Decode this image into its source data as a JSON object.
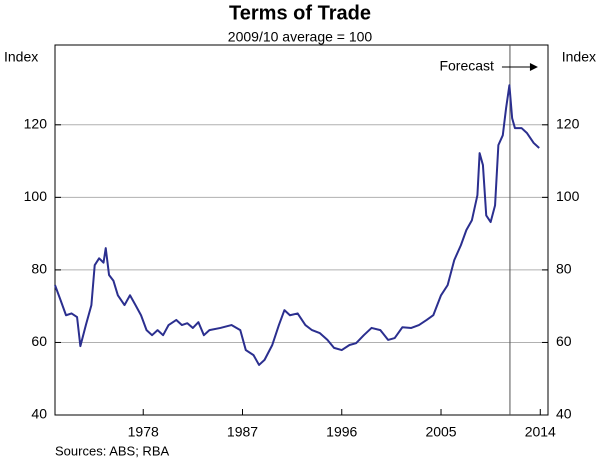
{
  "chart_data": {
    "type": "line",
    "title": "Terms of Trade",
    "subtitle": "2009/10 average = 100",
    "y_label": "Index",
    "y2_label": "Index",
    "source": "Sources: ABS; RBA",
    "annotations": [
      {
        "text": "Forecast",
        "x": 2011.25
      }
    ],
    "xlim": [
      1970,
      2014.7
    ],
    "xticks": [
      1978,
      1987,
      1996,
      2005,
      2014
    ],
    "ylim": [
      40,
      142
    ],
    "yticks": [
      40,
      60,
      80,
      100,
      120
    ],
    "y2lim": [
      40,
      142
    ],
    "y2ticks": [
      40,
      60,
      80,
      100,
      120
    ],
    "grid": true,
    "series": [
      {
        "name": "Terms of Trade",
        "color": "#2b2f8f",
        "x": [
          1970.0,
          1970.5,
          1971,
          1971.5,
          1972,
          1972.3,
          1972.8,
          1973.3,
          1973.6,
          1974,
          1974.4,
          1974.6,
          1974.9,
          1975.3,
          1975.7,
          1976.3,
          1976.8,
          1977.3,
          1977.8,
          1978.3,
          1978.8,
          1979.3,
          1979.8,
          1980.3,
          1981,
          1981.5,
          1982,
          1982.5,
          1983,
          1983.5,
          1984,
          1985,
          1986,
          1986.8,
          1987.3,
          1988,
          1988.5,
          1989,
          1989.7,
          1990.3,
          1990.8,
          1991.3,
          1992,
          1992.7,
          1993.3,
          1994,
          1994.7,
          1995.3,
          1996,
          1996.7,
          1997.3,
          1998,
          1998.7,
          1999.5,
          2000.2,
          2000.8,
          2001.5,
          2002.3,
          2003,
          2003.7,
          2004.3,
          2005,
          2005.6,
          2006.2,
          2006.8,
          2007.3,
          2007.8,
          2008.3,
          2008.5,
          2008.8,
          2009.1,
          2009.5,
          2009.9,
          2010.2,
          2010.6,
          2010.9,
          2011.2,
          2011.45,
          2011.7,
          2012.3,
          2012.8,
          2013.4,
          2013.9
        ],
        "values": [
          75.8,
          71.7,
          67.5,
          68,
          67,
          59,
          64.8,
          70.3,
          81.3,
          83.2,
          82,
          86,
          78.6,
          77,
          73,
          70.3,
          73,
          70.3,
          67.5,
          63.4,
          62,
          63.4,
          62,
          64.8,
          66.2,
          64.8,
          65.3,
          64,
          65.6,
          62,
          63.4,
          64,
          64.8,
          63.4,
          57.9,
          56.5,
          53.8,
          55.2,
          59.3,
          64.8,
          68.9,
          67.5,
          68,
          64.8,
          63.4,
          62.6,
          60.7,
          58.5,
          57.9,
          59.3,
          59.8,
          62,
          64,
          63.4,
          60.7,
          61.2,
          64.2,
          64,
          64.8,
          66.2,
          67.5,
          73,
          75.8,
          82.7,
          86.8,
          91,
          93.7,
          100.6,
          112.2,
          108.9,
          95,
          93.2,
          97.8,
          114.4,
          117.1,
          124.6,
          130.9,
          121.8,
          119.1,
          119.1,
          117.7,
          115,
          113.6
        ]
      }
    ]
  }
}
